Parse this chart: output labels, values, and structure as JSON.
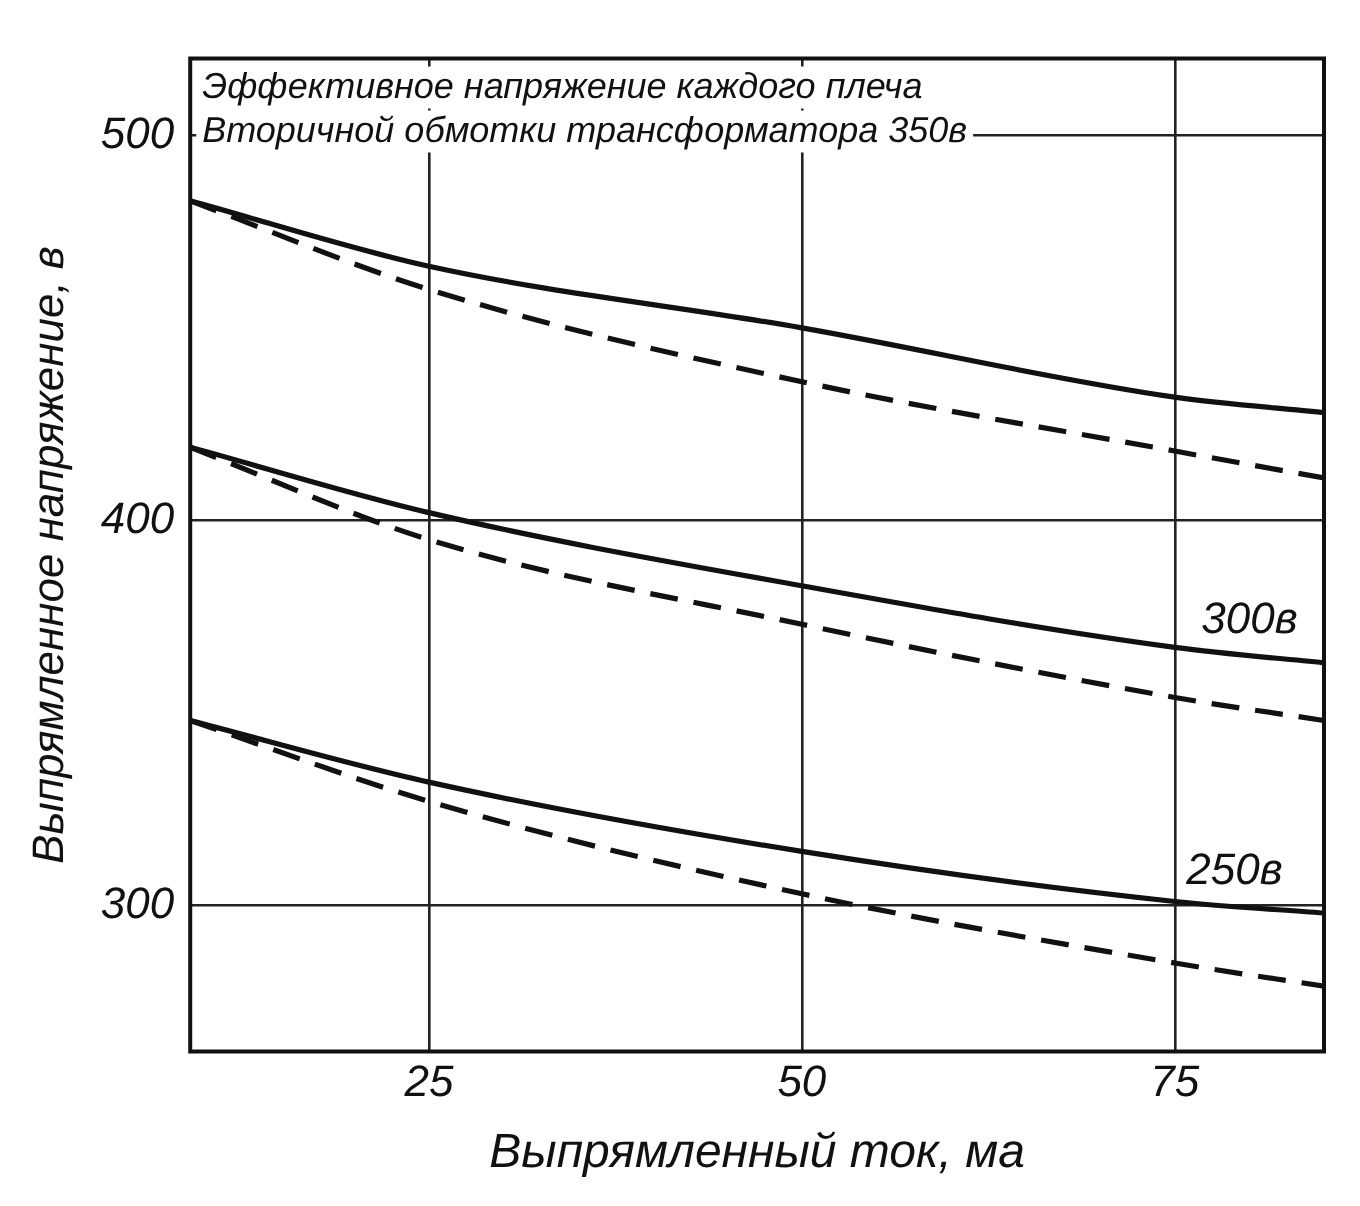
{
  "chart_data": {
    "type": "line",
    "xlabel": "Выпрямленный ток, ма",
    "ylabel": "Выпрямленное напряжение, в",
    "x": [
      9,
      25,
      50,
      75,
      85
    ],
    "series": [
      {
        "color": "#111111",
        "line_style": "solid",
        "values": [
          483,
          466,
          450,
          432,
          428
        ]
      },
      {
        "color": "#111111",
        "line_style": "dashed",
        "values": [
          483,
          460,
          436,
          418,
          411
        ]
      },
      {
        "color": "#111111",
        "line_style": "solid",
        "values": [
          419,
          402,
          383,
          367,
          363
        ]
      },
      {
        "color": "#111111",
        "line_style": "dashed",
        "values": [
          419,
          395,
          373,
          354,
          348
        ]
      },
      {
        "color": "#111111",
        "line_style": "solid",
        "values": [
          348,
          332,
          314,
          301,
          298
        ]
      },
      {
        "color": "#111111",
        "line_style": "dashed",
        "values": [
          348,
          327,
          303,
          285,
          279
        ]
      }
    ],
    "xlim": [
      9,
      85
    ],
    "xticks": [
      25,
      50,
      75
    ],
    "ylim": [
      262,
      520
    ],
    "yticks": [
      300,
      400,
      500
    ],
    "grid": true,
    "legend": false,
    "marker": "none",
    "annotations": [
      "Эффективное напряжение каждого плеча",
      "Вторичной обмотки трансформатора 350в",
      {
        "text": "300в",
        "x": 80,
        "y": 365
      },
      {
        "text": "250в",
        "x": 79,
        "y": 300
      }
    ]
  }
}
